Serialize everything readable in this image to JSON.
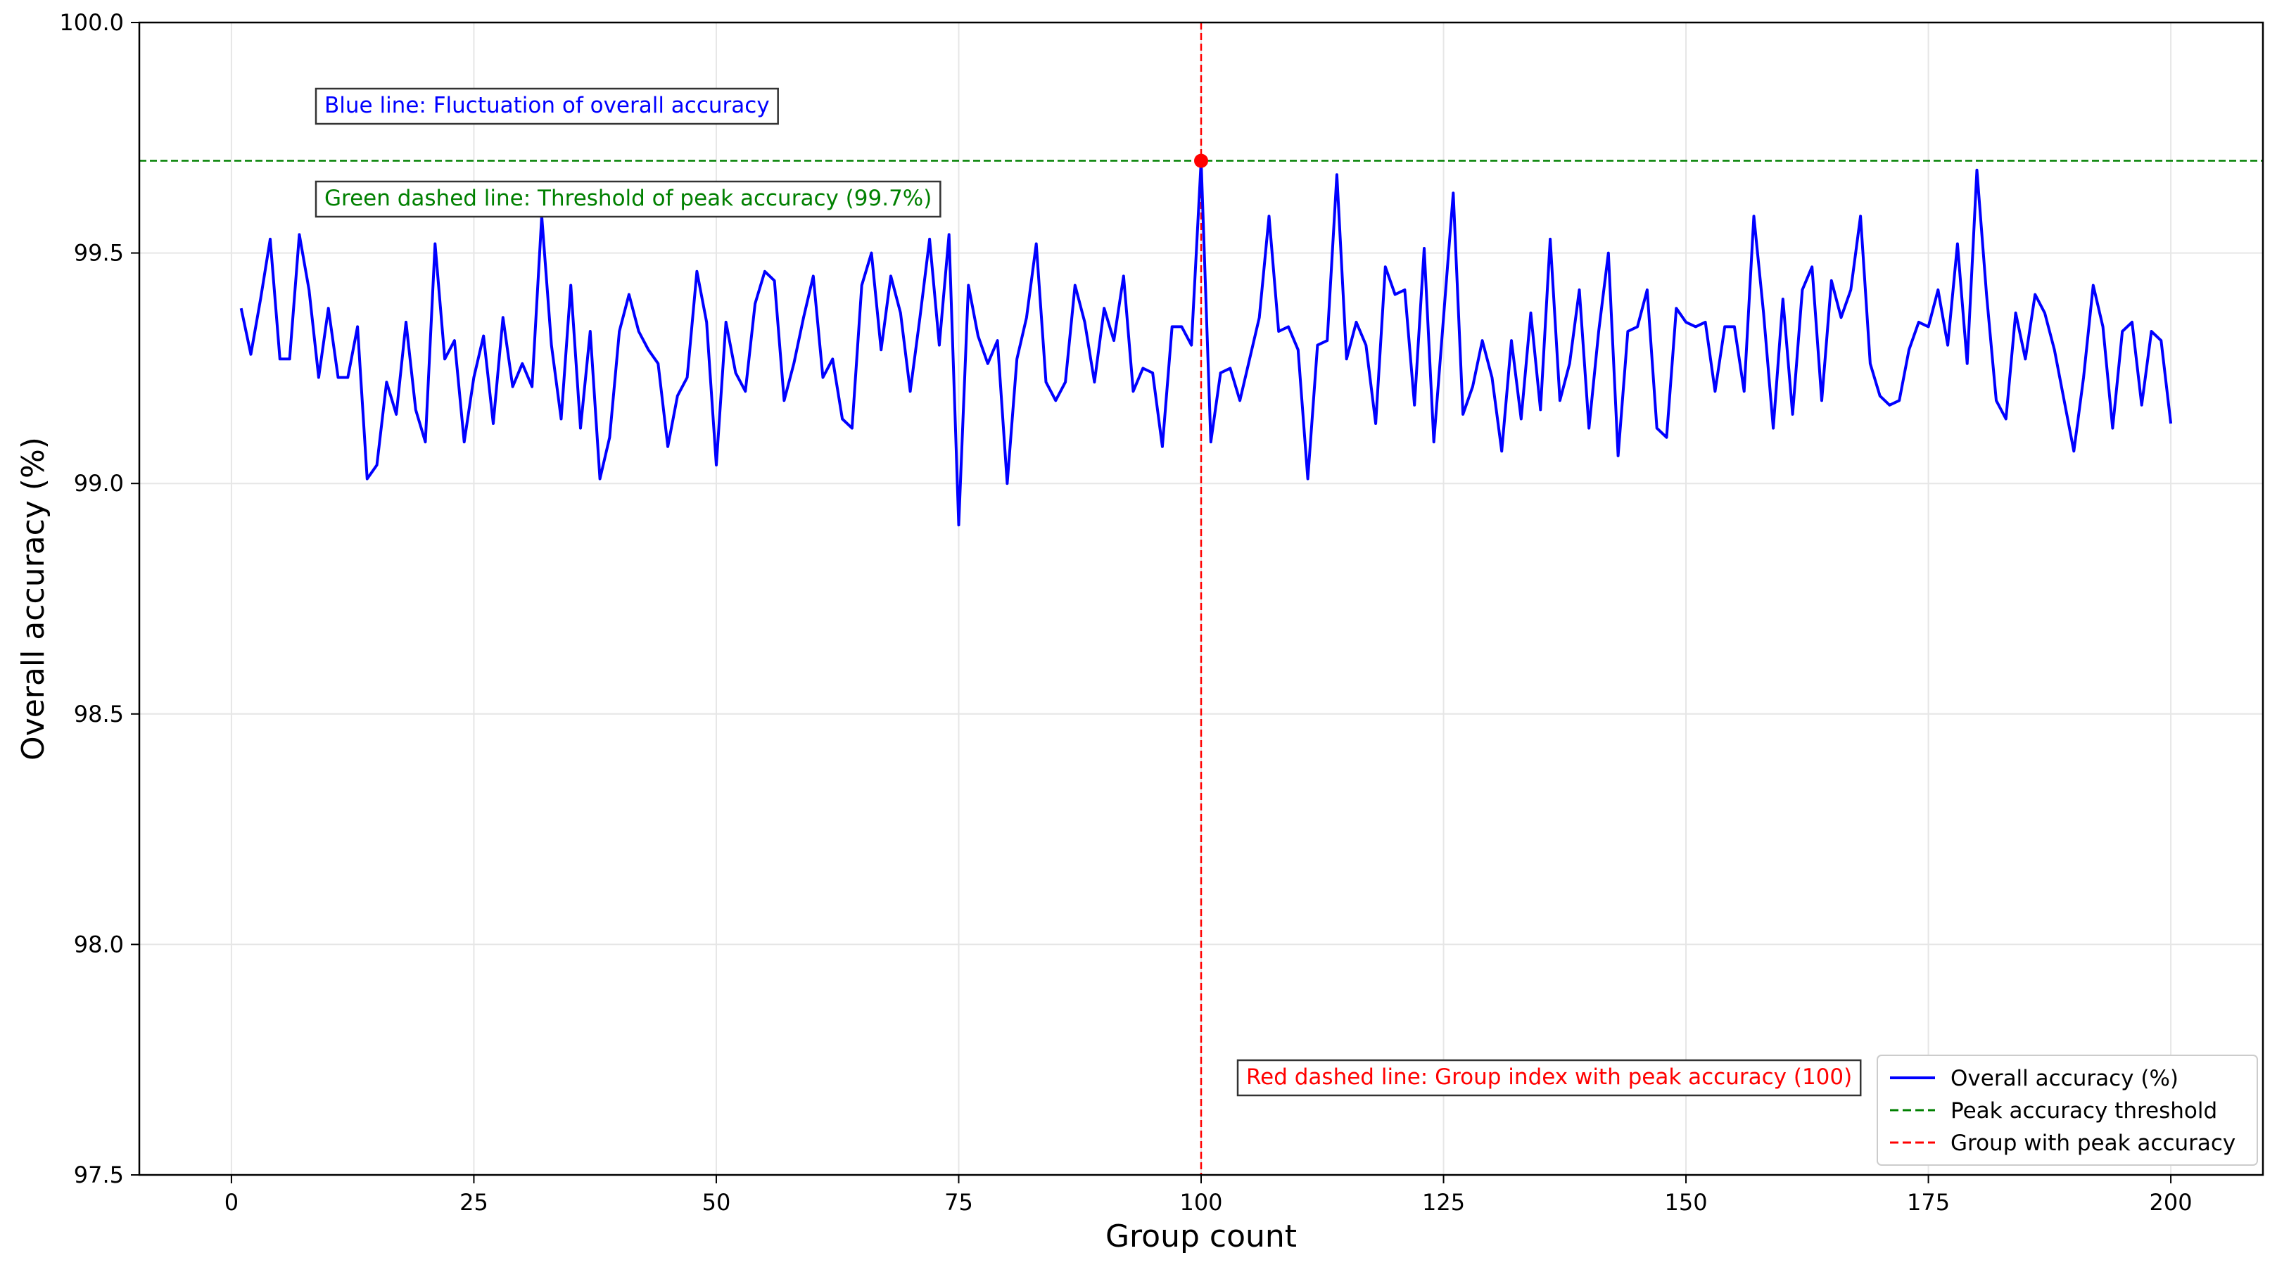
{
  "chart_data": {
    "type": "line",
    "xlabel": "Group count",
    "ylabel": "Overall accuracy (%)",
    "xlim": [
      -9.5,
      209.5
    ],
    "ylim": [
      97.5,
      100.0
    ],
    "xticks": [
      0,
      25,
      50,
      75,
      100,
      125,
      150,
      175,
      200
    ],
    "yticks": [
      97.5,
      98.0,
      98.5,
      99.0,
      99.5,
      100.0
    ],
    "xtick_labels": [
      "0",
      "25",
      "50",
      "75",
      "100",
      "125",
      "150",
      "175",
      "200"
    ],
    "ytick_labels": [
      "97.5",
      "98.0",
      "98.5",
      "99.0",
      "99.5",
      "100.0"
    ],
    "grid": true,
    "legend_position": "lower-right",
    "colors": {
      "series": "#0000ff",
      "threshold": "#008000",
      "peak_group": "#ff0000",
      "grid": "#e6e6e6",
      "axes": "#000000"
    },
    "series": [
      {
        "name": "Overall accuracy (%)",
        "x_start": 1,
        "x_step": 1,
        "values": [
          99.38,
          99.28,
          99.4,
          99.53,
          99.27,
          99.27,
          99.54,
          99.42,
          99.23,
          99.38,
          99.23,
          99.23,
          99.34,
          99.01,
          99.04,
          99.22,
          99.15,
          99.35,
          99.16,
          99.09,
          99.52,
          99.27,
          99.31,
          99.09,
          99.23,
          99.32,
          99.13,
          99.36,
          99.21,
          99.26,
          99.21,
          99.58,
          99.3,
          99.14,
          99.43,
          99.12,
          99.33,
          99.01,
          99.1,
          99.33,
          99.41,
          99.33,
          99.29,
          99.26,
          99.08,
          99.19,
          99.23,
          99.46,
          99.35,
          99.04,
          99.35,
          99.24,
          99.2,
          99.39,
          99.46,
          99.44,
          99.18,
          99.26,
          99.36,
          99.45,
          99.23,
          99.27,
          99.14,
          99.12,
          99.43,
          99.5,
          99.29,
          99.45,
          99.37,
          99.2,
          99.36,
          99.53,
          99.3,
          99.54,
          98.91,
          99.43,
          99.32,
          99.26,
          99.31,
          99.0,
          99.27,
          99.36,
          99.52,
          99.22,
          99.18,
          99.22,
          99.43,
          99.35,
          99.22,
          99.38,
          99.31,
          99.45,
          99.2,
          99.25,
          99.24,
          99.08,
          99.34,
          99.34,
          99.3,
          99.7,
          99.09,
          99.24,
          99.25,
          99.18,
          99.27,
          99.36,
          99.58,
          99.33,
          99.34,
          99.29,
          99.01,
          99.3,
          99.31,
          99.67,
          99.27,
          99.35,
          99.3,
          99.13,
          99.47,
          99.41,
          99.42,
          99.17,
          99.51,
          99.09,
          99.36,
          99.63,
          99.15,
          99.21,
          99.31,
          99.23,
          99.07,
          99.31,
          99.14,
          99.37,
          99.16,
          99.53,
          99.18,
          99.26,
          99.42,
          99.12,
          99.33,
          99.5,
          99.06,
          99.33,
          99.34,
          99.42,
          99.12,
          99.1,
          99.38,
          99.35,
          99.34,
          99.35,
          99.2,
          99.34,
          99.34,
          99.2,
          99.58,
          99.37,
          99.12,
          99.4,
          99.15,
          99.42,
          99.47,
          99.18,
          99.44,
          99.36,
          99.42,
          99.58,
          99.26,
          99.19,
          99.17,
          99.18,
          99.29,
          99.35,
          99.34,
          99.42,
          99.3,
          99.52,
          99.26,
          99.68,
          99.41,
          99.18,
          99.14,
          99.37,
          99.27,
          99.41,
          99.37,
          99.29,
          99.18,
          99.07,
          99.23,
          99.43,
          99.34,
          99.12,
          99.33,
          99.35,
          99.17,
          99.33,
          99.31,
          99.13
        ]
      }
    ],
    "threshold": {
      "name": "Peak accuracy threshold",
      "y": 99.7
    },
    "peak_group": {
      "name": "Group with peak accuracy",
      "x": 100
    },
    "peak_point": {
      "x": 100,
      "y": 99.7
    },
    "annotations": [
      {
        "text": "Blue line: Fluctuation of overall accuracy",
        "color": "#0000ff"
      },
      {
        "text": "Green dashed line: Threshold of peak accuracy (99.7%)",
        "color": "#008000"
      },
      {
        "text": "Red dashed line: Group index with peak accuracy (100)",
        "color": "#ff0000"
      }
    ],
    "legend": [
      {
        "label": "Overall accuracy (%)",
        "color": "#0000ff",
        "style": "solid"
      },
      {
        "label": "Peak accuracy threshold",
        "color": "#008000",
        "style": "dashed"
      },
      {
        "label": "Group with peak accuracy",
        "color": "#ff0000",
        "style": "dashed"
      }
    ]
  }
}
